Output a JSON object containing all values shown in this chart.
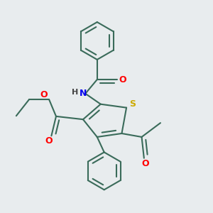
{
  "background_color": "#e8ecee",
  "bond_color": "#3a6b5a",
  "atom_colors": {
    "O": "#ff0000",
    "N": "#0000ee",
    "S": "#ccaa00",
    "H": "#444444",
    "C": "#3a6b5a"
  },
  "figsize": [
    3.0,
    3.0
  ],
  "dpi": 100
}
